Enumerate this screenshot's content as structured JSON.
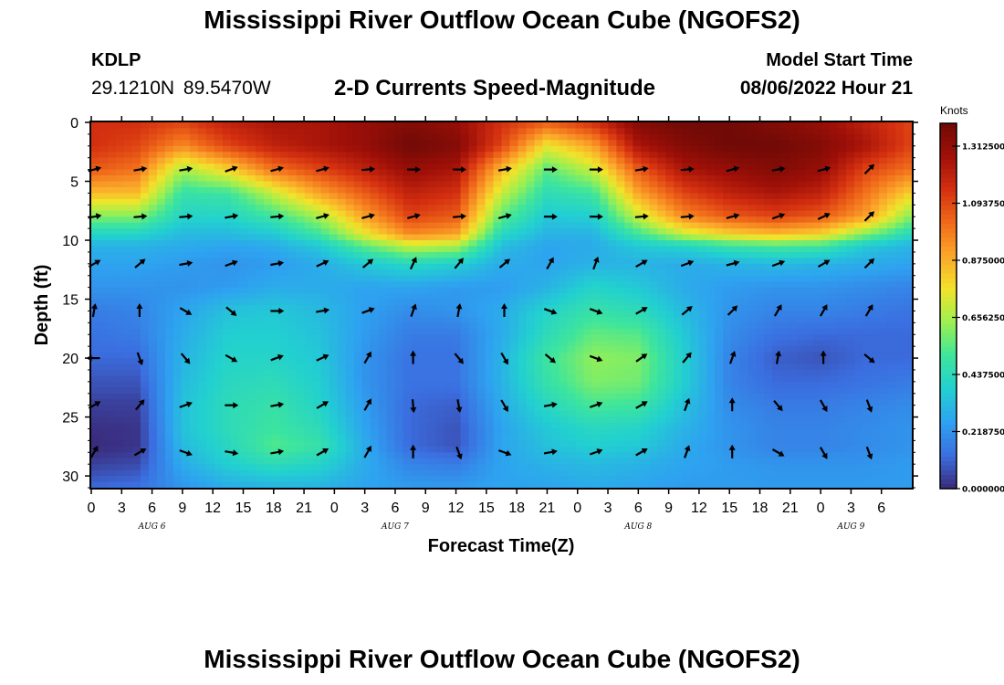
{
  "header": {
    "title": "Mississippi River Outflow Ocean Cube (NGOFS2)",
    "station_id": "KDLP",
    "station_coords": "29.1210N  89.5470W",
    "chart_title": "2-D Currents Speed-Magnitude",
    "model_start_label": "Model Start Time",
    "model_start_value": "08/06/2022 Hour 21"
  },
  "footer": {
    "title": "Mississippi River Outflow Ocean Cube (NGOFS2)"
  },
  "chart_data": {
    "type": "heatmap",
    "xlabel": "Forecast Time(Z)",
    "ylabel": "Depth (ft)",
    "x_unit": "forecast hour from model start (08/06/2022 Hour 21)",
    "xlim": [
      0,
      81
    ],
    "ylim": [
      31,
      0
    ],
    "x_tick_labels": [
      "0",
      "3",
      "6",
      "9",
      "12",
      "15",
      "18",
      "21",
      "0",
      "3",
      "6",
      "9",
      "12",
      "15",
      "18",
      "21",
      "0",
      "3",
      "6",
      "9",
      "12",
      "15",
      "18",
      "21",
      "0",
      "3",
      "6"
    ],
    "y_ticks": [
      0,
      5,
      10,
      15,
      20,
      25,
      30
    ],
    "date_labels": [
      {
        "label": "AUG 6",
        "x": 6
      },
      {
        "label": "AUG 7",
        "x": 30
      },
      {
        "label": "AUG 8",
        "x": 54
      },
      {
        "label": "AUG 9",
        "x": 75
      }
    ],
    "colorbar": {
      "title": "Knots",
      "ticks": [
        "0.000000",
        "0.218750",
        "0.437500",
        "0.656250",
        "0.875000",
        "1.093750",
        "1.312500"
      ],
      "range": [
        0,
        1.4
      ],
      "colors": [
        "#3a2a7a",
        "#3b6ee0",
        "#2ea2f0",
        "#22d0d0",
        "#3ee59c",
        "#9bf050",
        "#f2e32a",
        "#fba72a",
        "#f06a1a",
        "#d43010",
        "#a01008",
        "#700a06"
      ]
    },
    "speed_columns_x": [
      0,
      4.5,
      9,
      13.5,
      18,
      22.5,
      27,
      31.5,
      36,
      40.5,
      45,
      49.5,
      54,
      58.5,
      63,
      67.5,
      72,
      76.5,
      81
    ],
    "speed_rows_depth": [
      0,
      2,
      4,
      6,
      8,
      9.5,
      10.5,
      12,
      14,
      16,
      18,
      20,
      22,
      24,
      26,
      27.5,
      29,
      31
    ],
    "speed_knots": [
      [
        1.15,
        1.15,
        1.1,
        1.2,
        1.25,
        1.25,
        1.3,
        1.35,
        1.3,
        1.15,
        1.05,
        1.15,
        1.35,
        1.4,
        1.4,
        1.35,
        1.3,
        1.2,
        1.1
      ],
      [
        1.15,
        1.1,
        0.95,
        1.1,
        1.2,
        1.25,
        1.3,
        1.4,
        1.35,
        1.1,
        0.75,
        0.9,
        1.25,
        1.35,
        1.4,
        1.4,
        1.35,
        1.25,
        1.1
      ],
      [
        1.05,
        1.0,
        0.65,
        0.8,
        1.0,
        1.1,
        1.2,
        1.3,
        1.25,
        0.85,
        0.55,
        0.7,
        1.05,
        1.25,
        1.3,
        1.35,
        1.3,
        1.1,
        1.0
      ],
      [
        0.85,
        0.85,
        0.48,
        0.5,
        0.7,
        0.9,
        1.05,
        1.2,
        1.15,
        0.7,
        0.45,
        0.5,
        0.9,
        1.1,
        1.2,
        1.25,
        1.2,
        1.0,
        0.8
      ],
      [
        0.6,
        0.6,
        0.4,
        0.4,
        0.5,
        0.65,
        0.9,
        1.1,
        1.05,
        0.55,
        0.36,
        0.38,
        0.7,
        0.95,
        1.05,
        1.1,
        1.05,
        0.9,
        0.6
      ],
      [
        0.4,
        0.4,
        0.32,
        0.32,
        0.36,
        0.5,
        0.75,
        0.95,
        0.9,
        0.42,
        0.3,
        0.3,
        0.5,
        0.7,
        0.8,
        0.85,
        0.8,
        0.6,
        0.42
      ],
      [
        0.3,
        0.3,
        0.28,
        0.26,
        0.28,
        0.36,
        0.55,
        0.7,
        0.66,
        0.33,
        0.26,
        0.28,
        0.36,
        0.4,
        0.48,
        0.52,
        0.5,
        0.36,
        0.3
      ],
      [
        0.26,
        0.26,
        0.24,
        0.22,
        0.24,
        0.28,
        0.36,
        0.42,
        0.38,
        0.28,
        0.26,
        0.3,
        0.3,
        0.28,
        0.3,
        0.32,
        0.3,
        0.28,
        0.26
      ],
      [
        0.22,
        0.22,
        0.22,
        0.24,
        0.28,
        0.28,
        0.26,
        0.26,
        0.24,
        0.24,
        0.3,
        0.4,
        0.36,
        0.28,
        0.24,
        0.22,
        0.22,
        0.2,
        0.18
      ],
      [
        0.16,
        0.18,
        0.26,
        0.34,
        0.36,
        0.32,
        0.25,
        0.2,
        0.22,
        0.28,
        0.4,
        0.48,
        0.44,
        0.32,
        0.22,
        0.18,
        0.18,
        0.16,
        0.14
      ],
      [
        0.14,
        0.16,
        0.28,
        0.38,
        0.38,
        0.34,
        0.24,
        0.16,
        0.16,
        0.28,
        0.44,
        0.56,
        0.54,
        0.36,
        0.2,
        0.14,
        0.12,
        0.12,
        0.12
      ],
      [
        0.12,
        0.12,
        0.3,
        0.4,
        0.4,
        0.36,
        0.22,
        0.14,
        0.14,
        0.3,
        0.5,
        0.62,
        0.6,
        0.38,
        0.18,
        0.1,
        0.08,
        0.12,
        0.12
      ],
      [
        0.08,
        0.08,
        0.32,
        0.42,
        0.44,
        0.38,
        0.22,
        0.14,
        0.14,
        0.3,
        0.48,
        0.6,
        0.58,
        0.38,
        0.18,
        0.12,
        0.12,
        0.14,
        0.16
      ],
      [
        0.04,
        0.04,
        0.34,
        0.44,
        0.48,
        0.4,
        0.24,
        0.12,
        0.1,
        0.28,
        0.42,
        0.52,
        0.5,
        0.34,
        0.2,
        0.16,
        0.16,
        0.18,
        0.2
      ],
      [
        0.01,
        0.02,
        0.34,
        0.44,
        0.5,
        0.44,
        0.26,
        0.12,
        0.08,
        0.26,
        0.36,
        0.42,
        0.4,
        0.3,
        0.22,
        0.18,
        0.18,
        0.2,
        0.22
      ],
      [
        0.0,
        0.02,
        0.32,
        0.42,
        0.54,
        0.48,
        0.28,
        0.12,
        0.08,
        0.26,
        0.34,
        0.38,
        0.36,
        0.28,
        0.22,
        0.18,
        0.18,
        0.2,
        0.22
      ],
      [
        0.04,
        0.06,
        0.28,
        0.38,
        0.44,
        0.4,
        0.28,
        0.18,
        0.16,
        0.26,
        0.3,
        0.32,
        0.3,
        0.26,
        0.24,
        0.22,
        0.22,
        0.22,
        0.24
      ],
      [
        0.12,
        0.14,
        0.22,
        0.28,
        0.3,
        0.3,
        0.26,
        0.24,
        0.24,
        0.26,
        0.26,
        0.28,
        0.26,
        0.24,
        0.24,
        0.24,
        0.24,
        0.24,
        0.24
      ]
    ],
    "current_vectors": {
      "x": [
        0,
        4.5,
        9,
        13.5,
        18,
        22.5,
        27,
        31.5,
        36,
        40.5,
        45,
        49.5,
        54,
        58.5,
        63,
        67.5,
        72,
        76.5
      ],
      "depths": [
        4,
        8,
        12,
        16,
        20,
        24,
        28
      ],
      "directions_deg": [
        [
          15,
          10,
          10,
          20,
          15,
          15,
          5,
          0,
          0,
          10,
          0,
          0,
          10,
          5,
          15,
          10,
          15,
          45
        ],
        [
          10,
          5,
          5,
          10,
          5,
          15,
          15,
          15,
          5,
          15,
          0,
          0,
          5,
          5,
          15,
          20,
          25,
          45
        ],
        [
          30,
          40,
          10,
          20,
          10,
          25,
          40,
          65,
          50,
          40,
          60,
          70,
          30,
          20,
          15,
          20,
          30,
          45
        ],
        [
          80,
          90,
          330,
          320,
          0,
          10,
          20,
          70,
          80,
          90,
          340,
          340,
          30,
          40,
          45,
          60,
          60,
          60
        ],
        [
          180,
          290,
          310,
          330,
          20,
          25,
          60,
          90,
          310,
          300,
          320,
          340,
          35,
          50,
          70,
          80,
          90,
          320
        ],
        [
          30,
          50,
          20,
          0,
          10,
          30,
          60,
          275,
          280,
          300,
          10,
          20,
          30,
          70,
          90,
          310,
          300,
          290
        ],
        [
          60,
          30,
          340,
          350,
          10,
          30,
          60,
          90,
          290,
          340,
          10,
          20,
          30,
          70,
          90,
          330,
          300,
          290
        ]
      ]
    }
  }
}
